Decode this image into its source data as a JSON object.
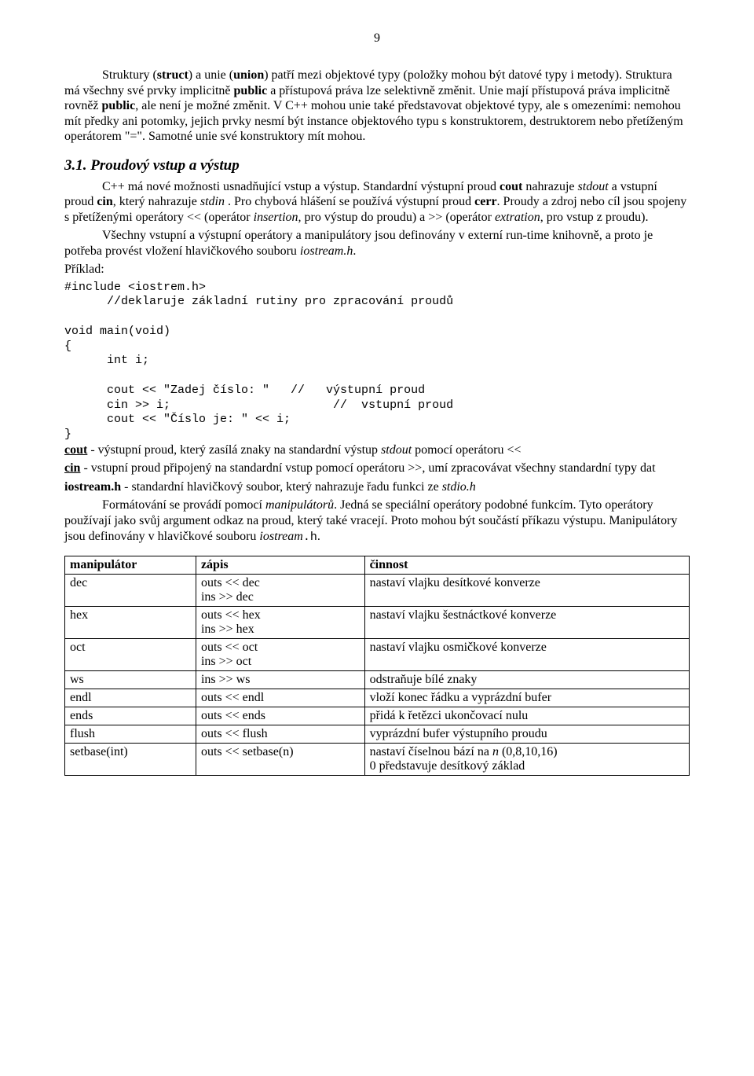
{
  "page_number": "9",
  "p1_a": "Struktury (",
  "p1_b": "struct",
  "p1_c": ") a unie (",
  "p1_d": "union",
  "p1_e": ") patří mezi objektové typy (položky mohou být datové typy i metody). Struktura má všechny své prvky implicitně ",
  "p1_f": "public",
  "p1_g": " a přístupová práva lze selektivně změnit. Unie mají přístupová práva implicitně rovněž ",
  "p1_h": "public",
  "p1_i": ", ale není je možné změnit. V C++ mohou unie také představovat objektové typy, ale s omezeními: nemohou mít předky ani potomky, jejich prvky nesmí být instance objektového typu s konstruktorem, destruktorem nebo přetíženým operátorem \"=\". Samotné unie své konstruktory mít mohou.",
  "section_title": "3.1. Proudový vstup a výstup",
  "p2_a": "C++ má nové možnosti usnadňující vstup a výstup. Standardní výstupní proud ",
  "p2_b": "cout",
  "p2_c": " nahrazuje ",
  "p2_d": "stdout",
  "p2_e": " a vstupní proud ",
  "p2_f": "cin",
  "p2_g": ", který nahrazuje ",
  "p2_h": "stdin",
  "p2_i": " . Pro chybová hlášení se používá výstupní proud ",
  "p2_j": "cerr",
  "p2_k": ". Proudy a zdroj nebo cíl jsou spojeny s přetíženými operátory << (operátor ",
  "p2_l": "insertion,",
  "p2_m": " pro výstup do proudu) a >> (operátor ",
  "p2_n": "extration",
  "p2_o": ", pro vstup z proudu).",
  "p3_a": "Všechny vstupní a výstupní operátory a manipulátory jsou definovány v externí run-time knihovně, a proto je potřeba provést vložení hlavičkového souboru ",
  "p3_b": "iostream.h",
  "p3_c": ".",
  "example_label": "Příklad:",
  "code1": "#include <iostrem.h>\n      //deklaruje základní rutiny pro zpracování proudů\n\nvoid main(void)\n{\n      int i;\n\n      cout << \"Zadej číslo: \"   //   výstupní proud\n      cin >> i;                       //  vstupní proud\n      cout << \"Číslo je: \" << i;\n}",
  "p4_a": "cout",
  "p4_b": " - výstupní proud, který zasílá znaky na standardní výstup ",
  "p4_c": "stdout",
  "p4_d": " pomocí operátoru <<",
  "p5_a": "cin",
  "p5_b": " - vstupní proud připojený na standardní vstup pomocí operátoru >>, umí zpracovávat všechny standardní typy dat",
  "p6_a": "iostream.h",
  "p6_b": " - standardní hlavičkový soubor, který nahrazuje řadu funkci ze ",
  "p6_c": "stdio.h",
  "p7_a": "Formátování se provádí pomocí ",
  "p7_b": "manipulátorů",
  "p7_c": ". Jedná se speciální operátory podobné funkcím. Tyto operátory používají jako svůj argument odkaz na proud, který také vracejí. Proto mohou být součástí příkazu výstupu. Manipulátory jsou definovány v hlavičkové souboru ",
  "p7_d": "iostream",
  "p7_e": ".h",
  "p7_f": ".",
  "table": {
    "headers": [
      "manipulátor",
      "zápis",
      "činnost"
    ],
    "rows": [
      [
        "dec",
        "outs << dec\nins >> dec",
        "nastaví vlajku desítkové konverze"
      ],
      [
        "hex",
        "outs << hex\nins >> hex",
        "nastaví vlajku šestnáctkové konverze"
      ],
      [
        "oct",
        "outs << oct\nins >> oct",
        "nastaví vlajku osmičkové konverze"
      ],
      [
        "ws",
        "ins >> ws",
        "odstraňuje bílé znaky"
      ],
      [
        "endl",
        "outs << endl",
        "vloží konec řádku a vyprázdní bufer"
      ],
      [
        "ends",
        "outs << ends",
        "přidá k řetězci ukončovací nulu"
      ],
      [
        "flush",
        "outs << flush",
        "vyprázdní bufer výstupního proudu"
      ],
      [
        "setbase(int)",
        "outs << setbase(n)",
        "nastaví číselnou bází na n (0,8,10,16)\n0 představuje desítkový základ"
      ]
    ]
  }
}
